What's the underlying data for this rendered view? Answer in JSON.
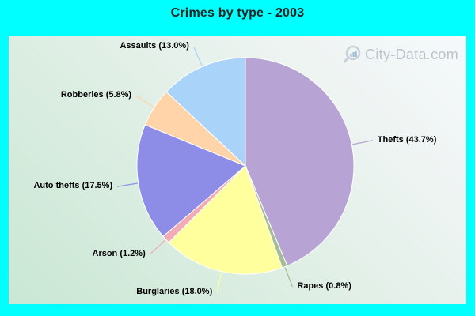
{
  "title": "Crimes by type - 2003",
  "watermark": {
    "text": "City-Data.com"
  },
  "chart_data": {
    "type": "pie",
    "title": "Crimes by type - 2003",
    "start_angle_deg": 0,
    "direction": "clockwise",
    "units": "percent",
    "legend": "labels-with-leader-lines",
    "slices": [
      {
        "label": "Thefts",
        "value": 43.7,
        "display": "Thefts (43.7%)",
        "color": "#b7a4d4"
      },
      {
        "label": "Rapes",
        "value": 0.8,
        "display": "Rapes (0.8%)",
        "color": "#a4bd93"
      },
      {
        "label": "Burglaries",
        "value": 18.0,
        "display": "Burglaries (18.0%)",
        "color": "#ffff9e"
      },
      {
        "label": "Arson",
        "value": 1.2,
        "display": "Arson (1.2%)",
        "color": "#f2aab4"
      },
      {
        "label": "Auto thefts",
        "value": 17.5,
        "display": "Auto thefts (17.5%)",
        "color": "#8d8de8"
      },
      {
        "label": "Robberies",
        "value": 5.8,
        "display": "Robberies (5.8%)",
        "color": "#ffd4a8"
      },
      {
        "label": "Assaults",
        "value": 13.0,
        "display": "Assaults (13.0%)",
        "color": "#aad3f9"
      }
    ]
  },
  "colors": {
    "frame": "#00ffff",
    "title_color": "#1f1f1f",
    "label_color": "#000000",
    "watermark_color": "#b3bac3",
    "slice_border": "#ffffff"
  }
}
